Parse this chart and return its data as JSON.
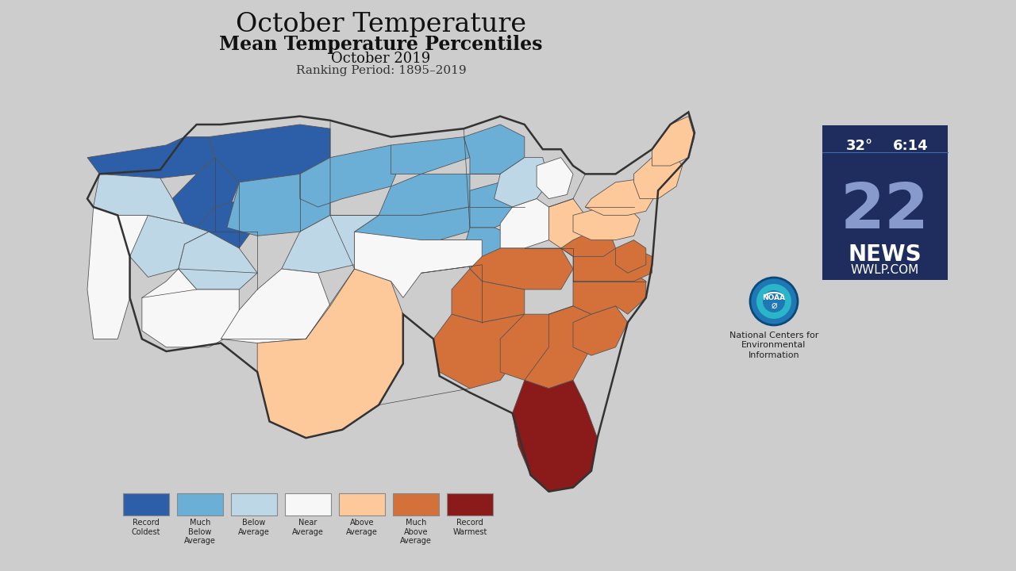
{
  "title_main": "October Temperature",
  "title_sub1": "Mean Temperature Percentiles",
  "title_sub2": "October 2019",
  "title_sub3": "Ranking Period: 1895–2019",
  "background_color": "#cdcdcd",
  "legend_labels": [
    "Record\nColdest",
    "Much\nBelow\nAverage",
    "Below\nAverage",
    "Near\nAverage",
    "Above\nAverage",
    "Much\nAbove\nAverage",
    "Record\nWarmest"
  ],
  "legend_colors": [
    "#2c5fa8",
    "#6baed6",
    "#bdd7e7",
    "#f7f7f7",
    "#fdc99b",
    "#d4703a",
    "#8b1a1a"
  ],
  "noaa_text": "National Centers for\nEnvironmental\nInformation",
  "tv_temp": "32°",
  "tv_time": "6:14",
  "tv_bg": "#1e2d5e",
  "title_fontsize": 24,
  "sub1_fontsize": 17,
  "sub2_fontsize": 13,
  "sub3_fontsize": 11
}
